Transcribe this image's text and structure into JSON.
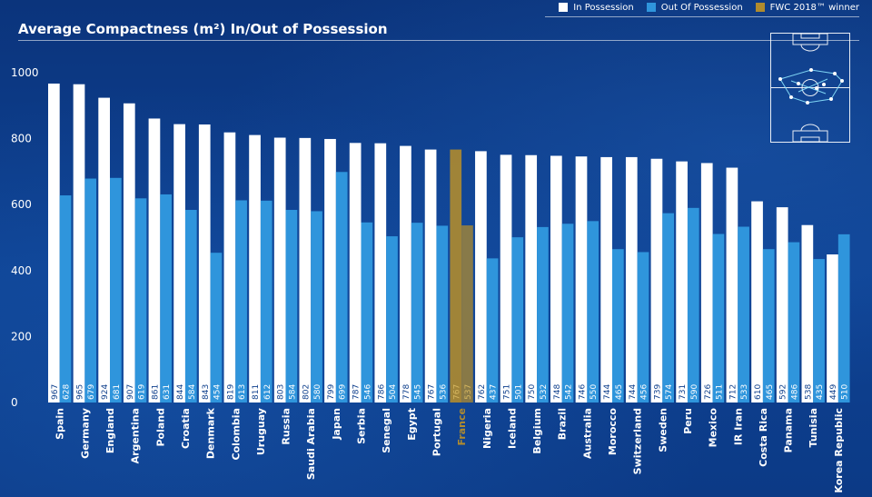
{
  "title": "Average Compactness (m²) In/Out of Possession",
  "legend": {
    "in_possession": "In Possession",
    "out_of_possession": "Out Of Possession",
    "winner": "FWC 2018™ winner"
  },
  "colors": {
    "in_possession": "#ffffff",
    "out_of_possession": "#2f95dc",
    "winner": "#b08b2e",
    "axis_text": "#ffffff",
    "label_text_in": "#0e3f8c",
    "label_text_out": "#ffffff",
    "winner_label_text": "#d6b760",
    "background": "#0d3c8a"
  },
  "chart_data": {
    "type": "bar",
    "title": "Average Compactness (m²) In/Out of Possession",
    "ylim": [
      0,
      1000
    ],
    "yticks": [
      0,
      200,
      400,
      600,
      800,
      1000
    ],
    "grid": false,
    "legend_position": "top-right",
    "winner": "France",
    "categories": [
      "Spain",
      "Germany",
      "England",
      "Argentina",
      "Poland",
      "Croatia",
      "Denmark",
      "Colombia",
      "Uruguay",
      "Russia",
      "Saudi Arabia",
      "Japan",
      "Serbia",
      "Senegal",
      "Egypt",
      "Portugal",
      "France",
      "Nigeria",
      "Iceland",
      "Belgium",
      "Brazil",
      "Australia",
      "Morocco",
      "Switzerland",
      "Sweden",
      "Peru",
      "Mexico",
      "IR Iran",
      "Costa Rica",
      "Panama",
      "Tunisia",
      "Korea Republic"
    ],
    "series": [
      {
        "name": "In Possession",
        "values": [
          967,
          965,
          924,
          907,
          861,
          844,
          843,
          819,
          811,
          803,
          802,
          799,
          787,
          786,
          778,
          767,
          767,
          762,
          751,
          750,
          748,
          746,
          744,
          744,
          739,
          731,
          726,
          712,
          610,
          592,
          538,
          449
        ]
      },
      {
        "name": "Out Of Possession",
        "values": [
          628,
          679,
          681,
          619,
          631,
          584,
          454,
          613,
          612,
          584,
          580,
          699,
          546,
          504,
          545,
          536,
          537,
          437,
          501,
          532,
          542,
          550,
          465,
          456,
          574,
          590,
          511,
          533,
          465,
          486,
          435,
          510
        ]
      }
    ]
  }
}
